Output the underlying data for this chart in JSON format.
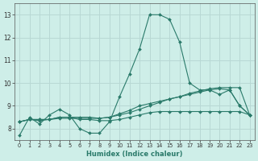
{
  "xlabel": "Humidex (Indice chaleur)",
  "ylabel": "",
  "bg_color": "#ceeee8",
  "grid_color": "#b8d8d4",
  "line_color": "#2a7a6a",
  "xlim": [
    -0.5,
    23.5
  ],
  "ylim": [
    7.5,
    13.5
  ],
  "xticks": [
    0,
    1,
    2,
    3,
    4,
    5,
    6,
    7,
    8,
    9,
    10,
    11,
    12,
    13,
    14,
    15,
    16,
    17,
    18,
    19,
    20,
    21,
    22,
    23
  ],
  "yticks": [
    8,
    9,
    10,
    11,
    12,
    13
  ],
  "series": [
    {
      "x": [
        0,
        1,
        2,
        3,
        4,
        5,
        6,
        7,
        8,
        9,
        10,
        11,
        12,
        13,
        14,
        15,
        16,
        17,
        18,
        19,
        20,
        21,
        22,
        23
      ],
      "y": [
        7.7,
        8.5,
        8.2,
        8.6,
        8.85,
        8.6,
        8.0,
        7.8,
        7.8,
        8.3,
        9.4,
        10.4,
        11.5,
        13.0,
        13.0,
        12.8,
        11.8,
        10.0,
        9.7,
        9.7,
        9.5,
        9.7,
        9.0,
        8.6
      ]
    },
    {
      "x": [
        0,
        1,
        2,
        3,
        4,
        5,
        6,
        7,
        8,
        9,
        10,
        11,
        12,
        13,
        14,
        15,
        16,
        17,
        18,
        19,
        20,
        21,
        22,
        23
      ],
      "y": [
        8.3,
        8.4,
        8.4,
        8.4,
        8.45,
        8.45,
        8.45,
        8.45,
        8.45,
        8.5,
        8.6,
        8.7,
        8.85,
        9.0,
        9.15,
        9.3,
        9.4,
        9.55,
        9.65,
        9.75,
        9.8,
        9.8,
        9.8,
        8.6
      ]
    },
    {
      "x": [
        0,
        1,
        2,
        3,
        4,
        5,
        6,
        7,
        8,
        9,
        10,
        11,
        12,
        13,
        14,
        15,
        16,
        17,
        18,
        19,
        20,
        21,
        22,
        23
      ],
      "y": [
        8.3,
        8.4,
        8.4,
        8.4,
        8.5,
        8.5,
        8.5,
        8.5,
        8.45,
        8.5,
        8.65,
        8.8,
        9.0,
        9.1,
        9.2,
        9.3,
        9.4,
        9.5,
        9.6,
        9.7,
        9.75,
        9.7,
        9.0,
        8.6
      ]
    },
    {
      "x": [
        0,
        1,
        2,
        3,
        4,
        5,
        6,
        7,
        8,
        9,
        10,
        11,
        12,
        13,
        14,
        15,
        16,
        17,
        18,
        19,
        20,
        21,
        22,
        23
      ],
      "y": [
        8.3,
        8.4,
        8.35,
        8.4,
        8.5,
        8.5,
        8.4,
        8.4,
        8.35,
        8.35,
        8.4,
        8.5,
        8.6,
        8.7,
        8.75,
        8.75,
        8.75,
        8.75,
        8.75,
        8.75,
        8.75,
        8.75,
        8.75,
        8.6
      ]
    }
  ]
}
